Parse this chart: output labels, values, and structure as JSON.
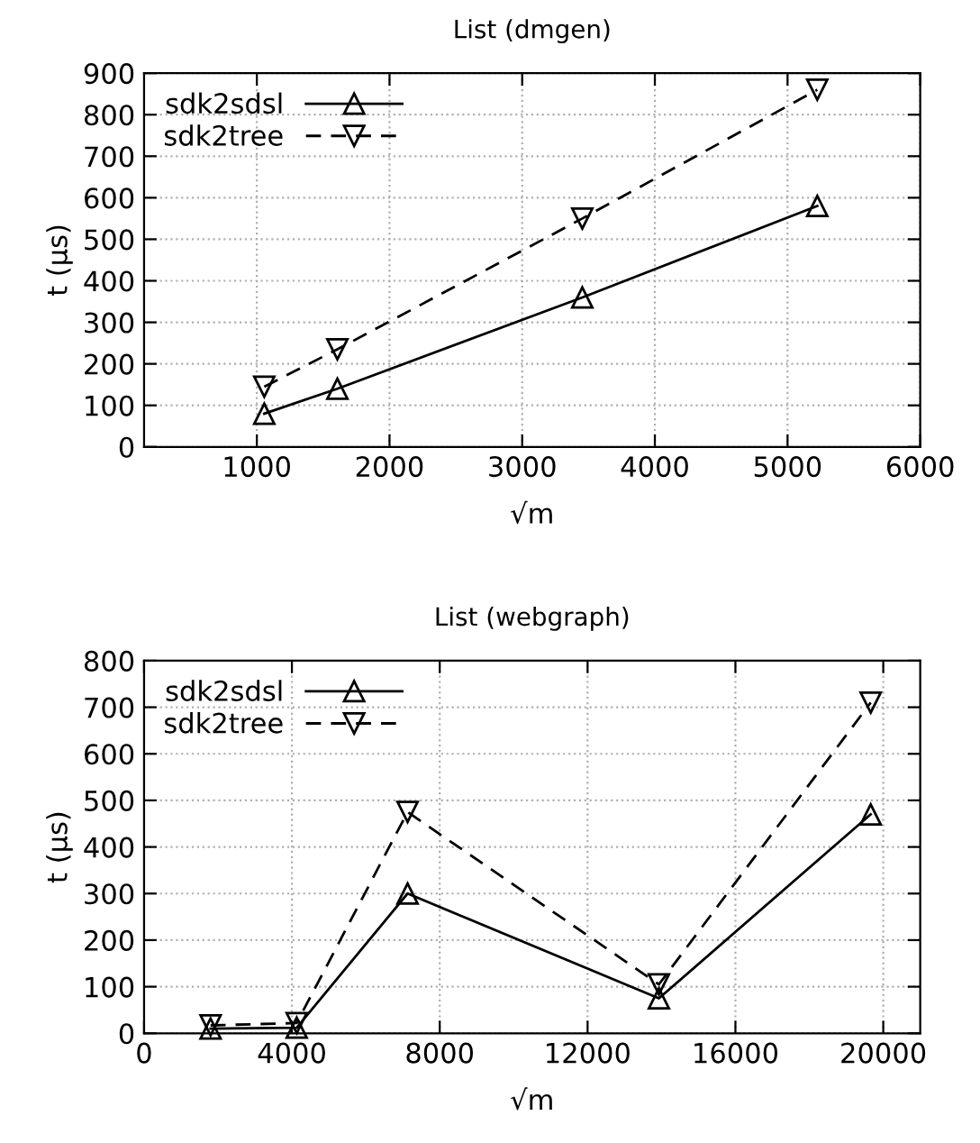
{
  "chart_data": [
    {
      "type": "line",
      "title": "List (dmgen)",
      "xlabel": "√m",
      "ylabel": "t (µs)",
      "xlim": [
        150,
        6000
      ],
      "xticks": [
        1000,
        2000,
        3000,
        4000,
        5000,
        6000
      ],
      "ylim": [
        0,
        900
      ],
      "yticks": [
        0,
        100,
        200,
        300,
        400,
        500,
        600,
        700,
        800,
        900
      ],
      "grid": true,
      "legend": "top left",
      "series": [
        {
          "name": "sdk2sdsl",
          "color": "#000000",
          "marker": "triangle",
          "line_style": "solid",
          "x": [
            1056,
            1607,
            3453,
            5224
          ],
          "values": [
            80,
            140,
            360,
            580
          ]
        },
        {
          "name": "sdk2tree",
          "color": "#000000",
          "marker": "triangle_down",
          "line_style": "dashed",
          "x": [
            1056,
            1607,
            3453,
            5224
          ],
          "values": [
            145,
            235,
            550,
            860
          ]
        }
      ]
    },
    {
      "type": "line",
      "title": "List (webgraph)",
      "xlabel": "√m",
      "ylabel": "t (µs)",
      "xlim": [
        0,
        21000
      ],
      "xticks": [
        0,
        4000,
        8000,
        12000,
        16000,
        20000
      ],
      "ylim": [
        0,
        800
      ],
      "yticks": [
        0,
        100,
        200,
        300,
        400,
        500,
        600,
        700,
        800
      ],
      "grid": true,
      "legend": "top left",
      "series": [
        {
          "name": "sdk2sdsl",
          "color": "#000000",
          "marker": "triangle",
          "line_style": "solid",
          "x": [
            1800,
            4130,
            7130,
            13930,
            19660
          ],
          "values": [
            10,
            12,
            300,
            75,
            470
          ]
        },
        {
          "name": "sdk2tree",
          "color": "#000000",
          "marker": "triangle_down",
          "line_style": "dashed",
          "x": [
            1800,
            4130,
            7130,
            13930,
            19660
          ],
          "values": [
            17,
            22,
            475,
            105,
            710
          ]
        }
      ]
    }
  ]
}
